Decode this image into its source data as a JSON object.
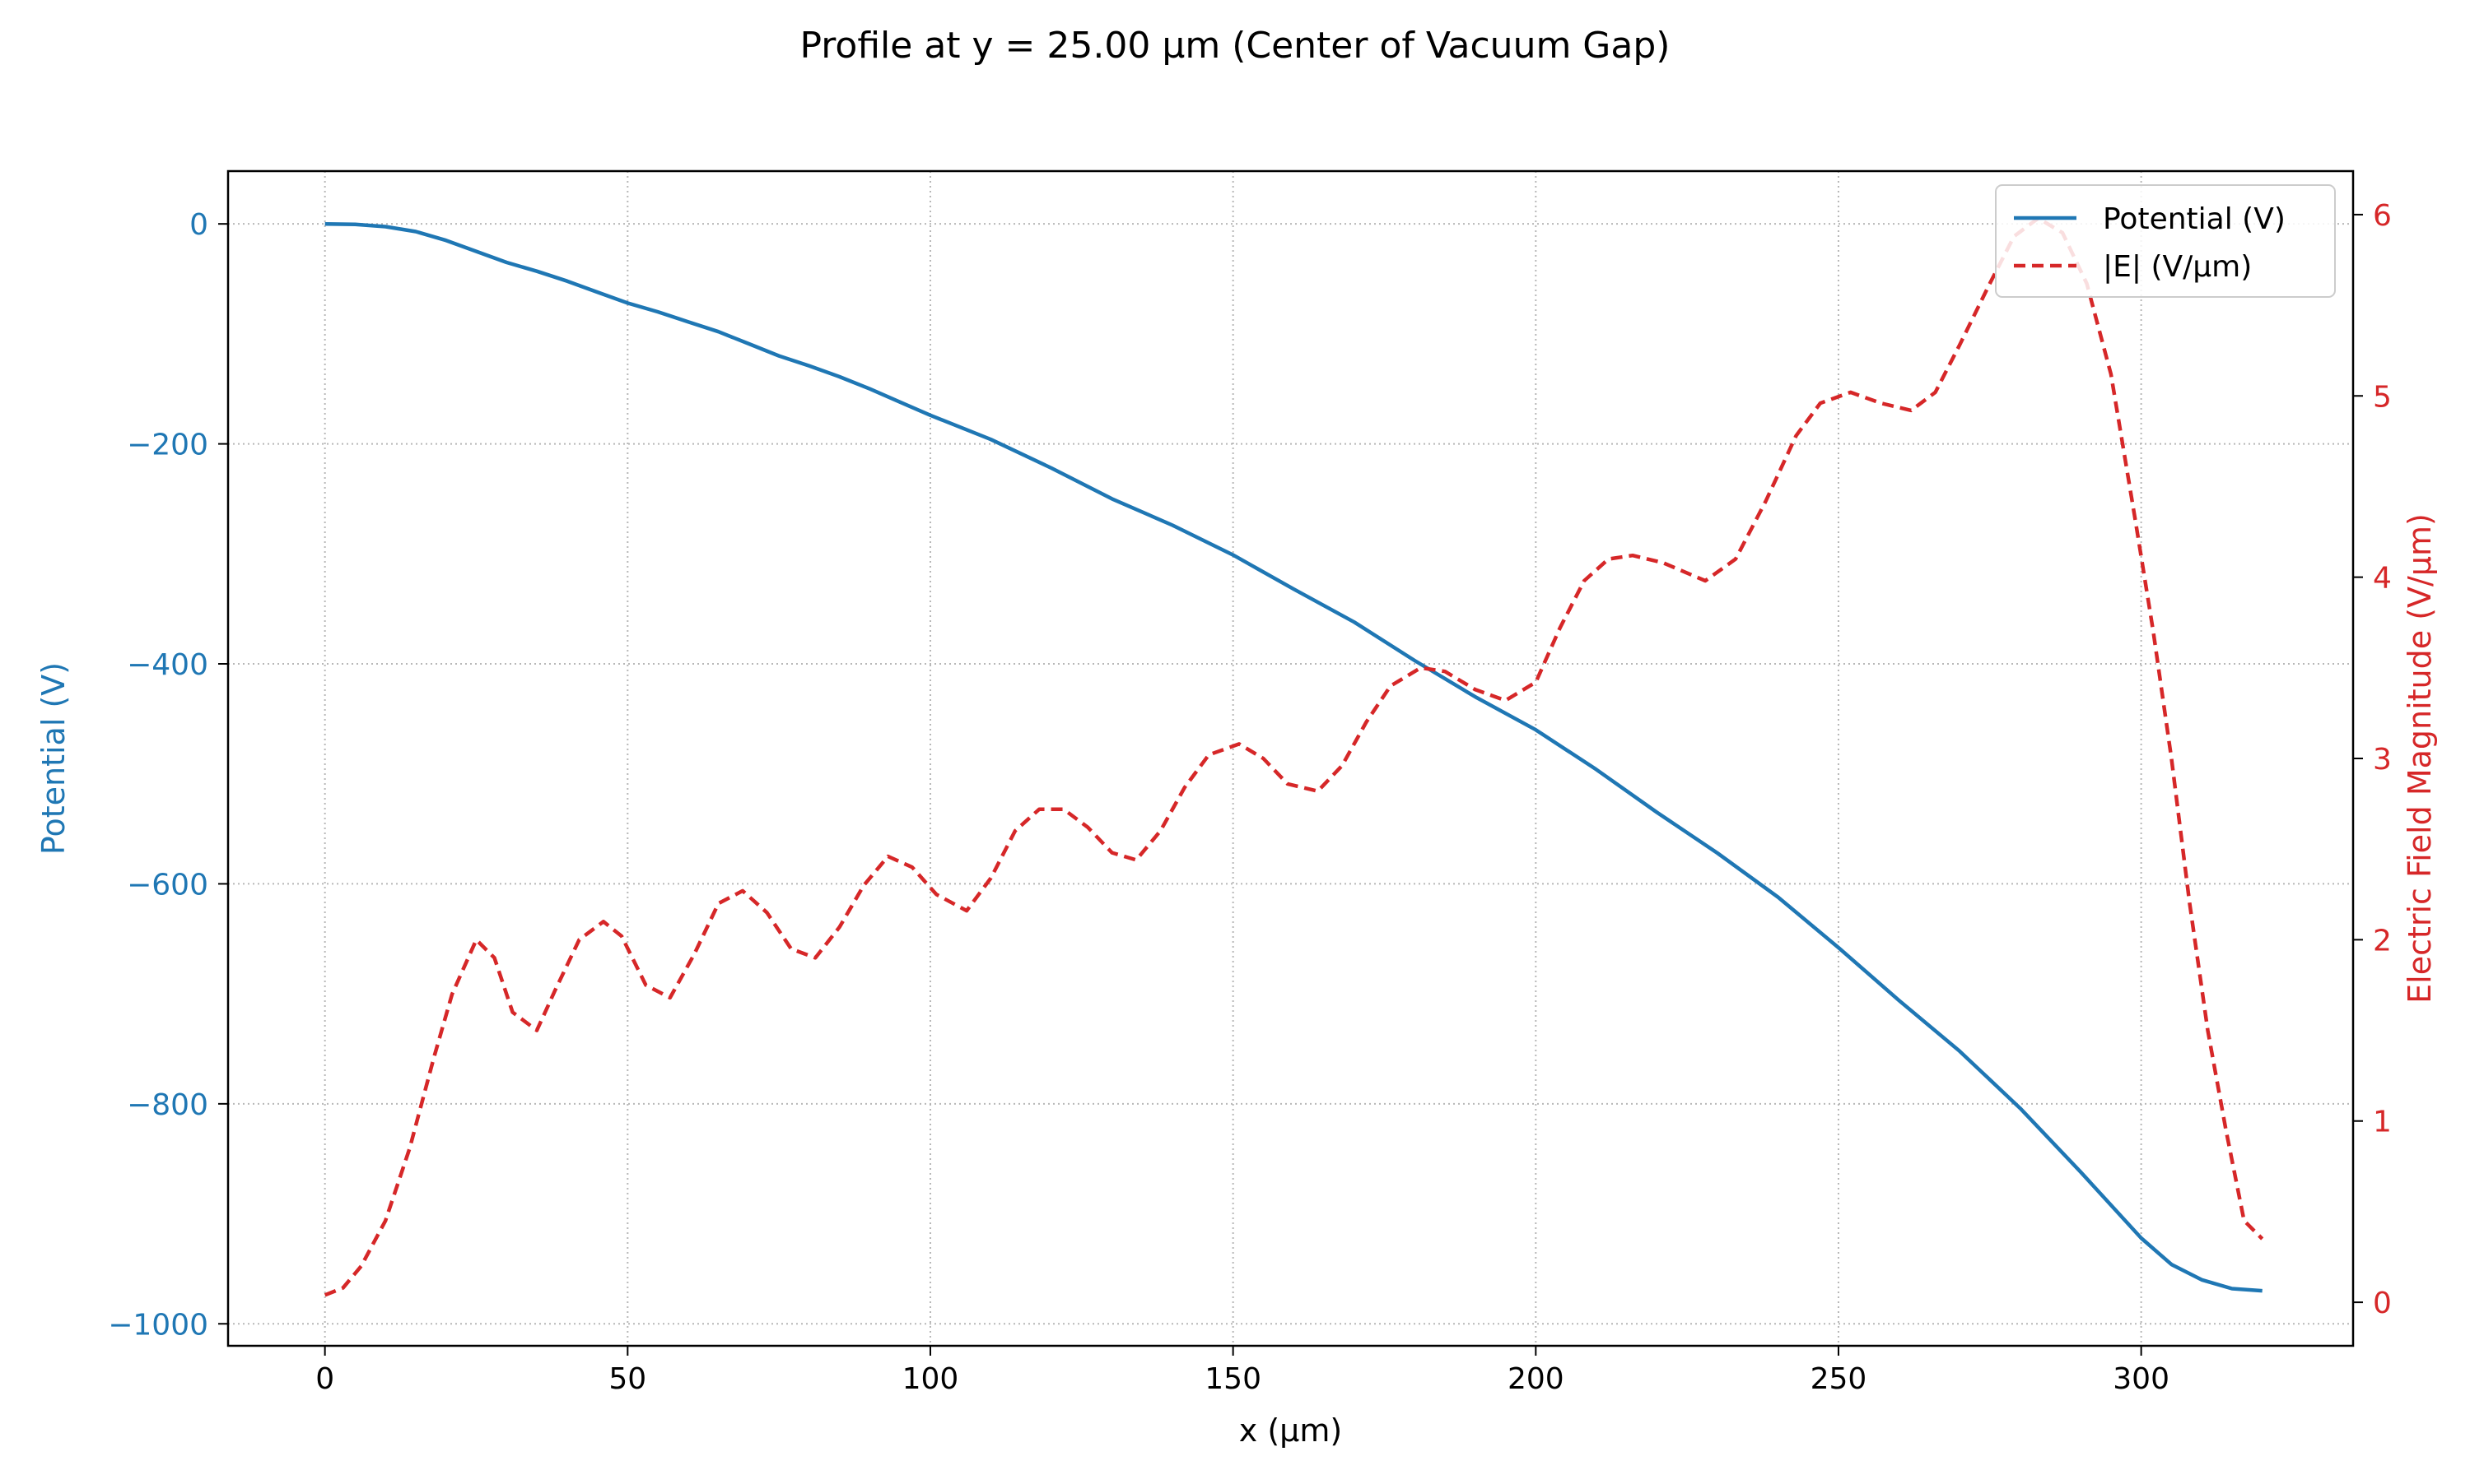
{
  "chart_data": {
    "type": "line",
    "title": "Profile at y = 25.00 µm (Center of Vacuum Gap)",
    "xlabel": "x (µm)",
    "ylabel_left": "Potential (V)",
    "ylabel_right": "Electric Field Magnitude (V/µm)",
    "xlim": [
      -16,
      335
    ],
    "ylim_left": [
      -1020,
      48
    ],
    "ylim_right": [
      -0.24,
      6.24
    ],
    "xticks": [
      0,
      50,
      100,
      150,
      200,
      250,
      300
    ],
    "yticks_left": [
      0,
      -200,
      -400,
      -600,
      -800,
      -1000
    ],
    "yticks_left_labels": [
      "0",
      "−200",
      "−400",
      "−600",
      "−800",
      "−1000"
    ],
    "yticks_right": [
      0,
      1,
      2,
      3,
      4,
      5,
      6
    ],
    "grid": true,
    "grid_style": "dotted",
    "legend_position": "top-right",
    "colors": {
      "potential": "#1f77b4",
      "efield": "#d62728"
    },
    "series": [
      {
        "name": "Potential (V)",
        "axis": "left",
        "style": "solid",
        "x": [
          0,
          5,
          10,
          15,
          20,
          25,
          30,
          35,
          40,
          45,
          50,
          55,
          60,
          65,
          70,
          75,
          80,
          85,
          90,
          95,
          100,
          110,
          120,
          130,
          140,
          150,
          160,
          170,
          180,
          190,
          200,
          210,
          220,
          230,
          240,
          250,
          260,
          270,
          280,
          290,
          300,
          305,
          310,
          315,
          320
        ],
        "values": [
          0,
          -0.5,
          -2.5,
          -7,
          -15,
          -25,
          -35,
          -43,
          -52,
          -62,
          -72,
          -80,
          -89,
          -98,
          -109,
          -120,
          -129,
          -139,
          -150,
          -162,
          -174,
          -196,
          -222,
          -250,
          -274,
          -301,
          -332,
          -362,
          -397,
          -430,
          -460,
          -496,
          -535,
          -572,
          -612,
          -658,
          -706,
          -752,
          -804,
          -862,
          -922,
          -946,
          -960,
          -968,
          -970
        ]
      },
      {
        "name": "|E| (V/µm)",
        "axis": "right",
        "style": "dashed",
        "x": [
          0,
          3,
          6,
          10,
          14,
          18,
          21,
          25,
          28,
          31,
          35,
          38,
          42,
          46,
          49,
          53,
          57,
          61,
          65,
          69,
          73,
          77,
          81,
          85,
          89,
          93,
          97,
          101,
          106,
          110,
          114,
          118,
          122,
          126,
          130,
          134,
          138,
          142,
          146,
          151,
          155,
          159,
          164,
          168,
          172,
          176,
          181,
          185,
          190,
          195,
          200,
          204,
          208,
          212,
          216,
          221,
          228,
          233,
          238,
          243,
          247,
          252,
          257,
          262,
          266,
          270,
          275,
          279,
          283,
          287,
          291,
          295,
          299,
          302,
          305,
          308,
          311,
          314,
          317,
          320
        ],
        "values": [
          0.04,
          0.08,
          0.2,
          0.45,
          0.85,
          1.35,
          1.7,
          2.0,
          1.9,
          1.6,
          1.5,
          1.72,
          2.0,
          2.1,
          2.02,
          1.75,
          1.68,
          1.92,
          2.2,
          2.27,
          2.15,
          1.95,
          1.9,
          2.07,
          2.3,
          2.46,
          2.4,
          2.25,
          2.16,
          2.34,
          2.6,
          2.72,
          2.72,
          2.62,
          2.48,
          2.44,
          2.6,
          2.84,
          3.02,
          3.08,
          3.0,
          2.86,
          2.82,
          2.96,
          3.2,
          3.4,
          3.5,
          3.48,
          3.38,
          3.32,
          3.42,
          3.72,
          3.98,
          4.1,
          4.12,
          4.08,
          3.98,
          4.1,
          4.42,
          4.78,
          4.96,
          5.02,
          4.96,
          4.92,
          5.02,
          5.28,
          5.62,
          5.88,
          5.98,
          5.9,
          5.62,
          5.12,
          4.32,
          3.7,
          3.0,
          2.2,
          1.5,
          0.95,
          0.45,
          0.35
        ]
      }
    ]
  }
}
